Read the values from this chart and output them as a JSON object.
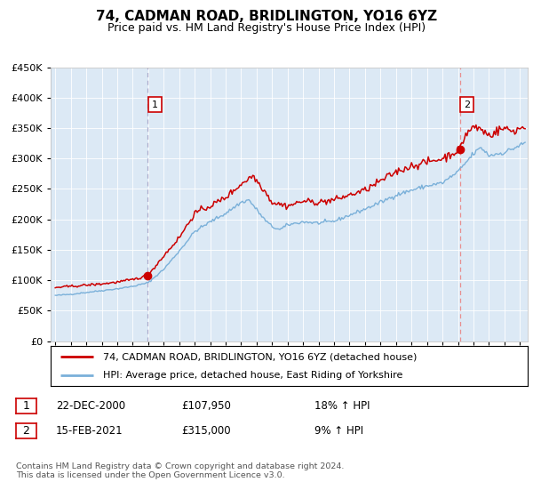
{
  "title": "74, CADMAN ROAD, BRIDLINGTON, YO16 6YZ",
  "subtitle": "Price paid vs. HM Land Registry's House Price Index (HPI)",
  "legend_line1": "74, CADMAN ROAD, BRIDLINGTON, YO16 6YZ (detached house)",
  "legend_line2": "HPI: Average price, detached house, East Riding of Yorkshire",
  "sale1_date": "22-DEC-2000",
  "sale1_price": "£107,950",
  "sale1_hpi": "18% ↑ HPI",
  "sale2_date": "15-FEB-2021",
  "sale2_price": "£315,000",
  "sale2_hpi": "9% ↑ HPI",
  "footer": "Contains HM Land Registry data © Crown copyright and database right 2024.\nThis data is licensed under the Open Government Licence v3.0.",
  "plot_bg_color": "#dce9f5",
  "red_color": "#cc0000",
  "blue_color": "#7ab0d9",
  "sale1_x": 2000.97,
  "sale2_x": 2021.12,
  "sale1_y": 107950,
  "sale2_y": 315000,
  "ylim": [
    0,
    450000
  ],
  "xlim_start": 1994.7,
  "xlim_end": 2025.5,
  "hpi_anchors_x": [
    1995.0,
    1996.0,
    1997.0,
    1998.0,
    1999.0,
    2000.0,
    2001.0,
    2002.0,
    2003.0,
    2004.0,
    2005.0,
    2006.0,
    2007.0,
    2007.5,
    2008.5,
    2009.0,
    2009.5,
    2010.0,
    2011.0,
    2012.0,
    2013.0,
    2014.0,
    2015.0,
    2016.0,
    2017.0,
    2018.0,
    2019.0,
    2020.0,
    2021.0,
    2022.0,
    2022.5,
    2023.0,
    2024.0,
    2025.3
  ],
  "hpi_anchors_y": [
    75000,
    77000,
    80000,
    83000,
    86000,
    90000,
    96000,
    118000,
    148000,
    180000,
    196000,
    210000,
    228000,
    232000,
    200000,
    188000,
    183000,
    191000,
    196000,
    194000,
    197000,
    207000,
    217000,
    228000,
    240000,
    248000,
    255000,
    260000,
    278000,
    308000,
    318000,
    305000,
    310000,
    325000
  ],
  "red_anchors_x": [
    1995.0,
    1996.0,
    1997.0,
    1998.0,
    1999.0,
    2000.0,
    2000.97,
    2002.0,
    2003.0,
    2004.0,
    2005.0,
    2006.0,
    2007.0,
    2007.75,
    2008.5,
    2009.0,
    2010.0,
    2011.0,
    2012.0,
    2013.0,
    2014.0,
    2015.0,
    2016.0,
    2017.0,
    2018.0,
    2019.0,
    2020.0,
    2021.12,
    2021.5,
    2022.0,
    2022.5,
    2023.0,
    2023.5,
    2024.0,
    2024.5,
    2025.3
  ],
  "red_anchors_y": [
    88000,
    90000,
    92000,
    94000,
    97000,
    101000,
    107950,
    140000,
    170000,
    210000,
    222000,
    236000,
    258000,
    272000,
    248000,
    228000,
    222000,
    230000,
    228000,
    232000,
    240000,
    248000,
    263000,
    278000,
    288000,
    294000,
    300000,
    315000,
    340000,
    352000,
    348000,
    338000,
    345000,
    350000,
    345000,
    352000
  ]
}
